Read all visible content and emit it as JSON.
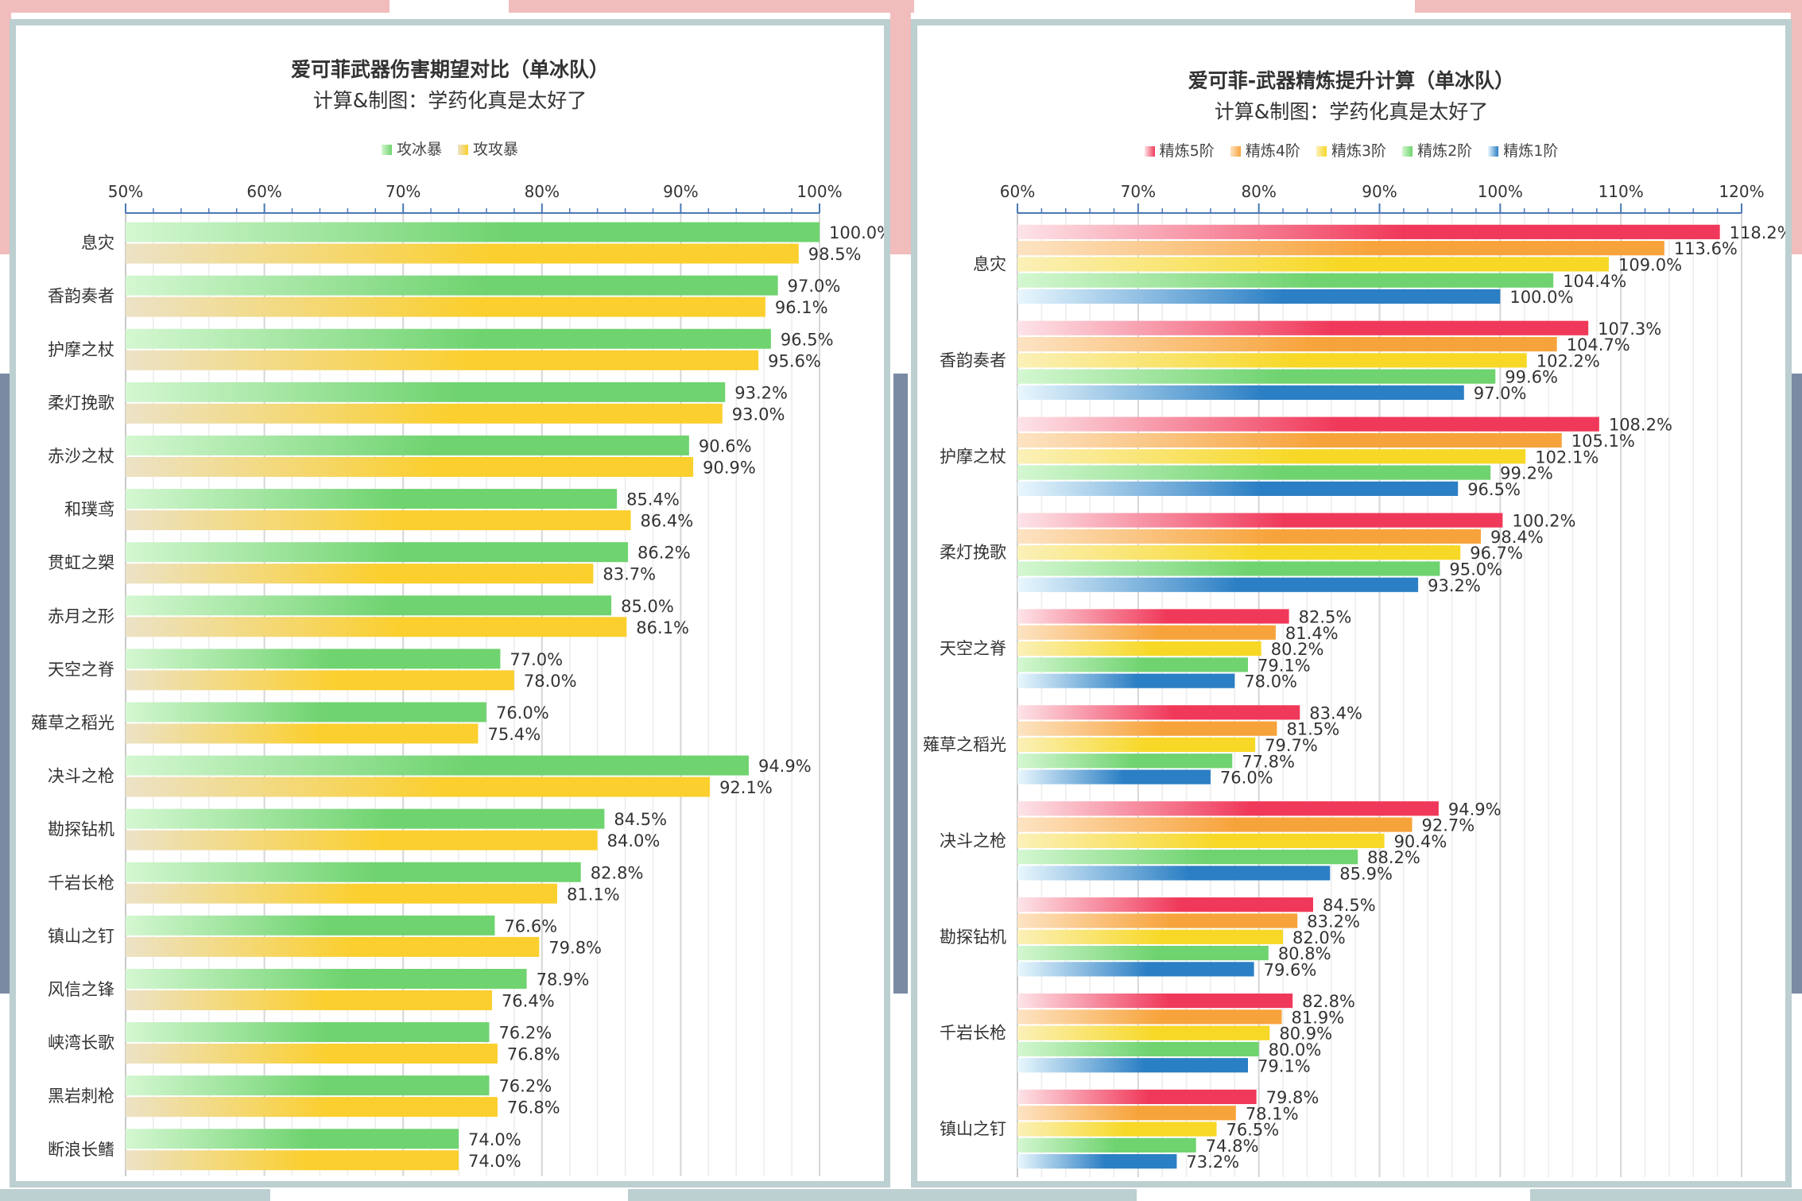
{
  "chart_data": [
    {
      "type": "bar",
      "orientation": "horizontal",
      "title": "爱可菲武器伤害期望对比（单冰队）",
      "subtitle": "计算&制图：学药化真是太好了",
      "legend_position": "top",
      "xlim": [
        50,
        100
      ],
      "x_ticks": [
        "50%",
        "60%",
        "70%",
        "80%",
        "90%",
        "100%"
      ],
      "grid": true,
      "categories": [
        "息灾",
        "香韵奏者",
        "护摩之杖",
        "柔灯挽歌",
        "赤沙之杖",
        "和璞鸢",
        "贯虹之槊",
        "赤月之形",
        "天空之脊",
        "薙草之稻光",
        "决斗之枪",
        "勘探钻机",
        "千岩长枪",
        "镇山之钉",
        "风信之锋",
        "峡湾长歌",
        "黑岩刺枪",
        "断浪长鳍"
      ],
      "series": [
        {
          "name": "攻冰暴",
          "color": "#6fd36f",
          "color_light": "#d4f7d1",
          "values": [
            100.0,
            97.0,
            96.5,
            93.2,
            90.6,
            85.4,
            86.2,
            85.0,
            77.0,
            76.0,
            94.9,
            84.5,
            82.8,
            76.6,
            78.9,
            76.2,
            76.2,
            74.0
          ],
          "labels": [
            "100.0%",
            "97.0%",
            "96.5%",
            "93.2%",
            "90.6%",
            "85.4%",
            "86.2%",
            "85.0%",
            "77.0%",
            "76.0%",
            "94.9%",
            "84.5%",
            "82.8%",
            "76.6%",
            "78.9%",
            "76.2%",
            "76.2%",
            "74.0%"
          ]
        },
        {
          "name": "攻攻暴",
          "color": "#fbcf2d",
          "color_light": "#ece2c6",
          "values": [
            98.5,
            96.1,
            95.6,
            93.0,
            90.9,
            86.4,
            83.7,
            86.1,
            78.0,
            75.4,
            92.1,
            84.0,
            81.1,
            79.8,
            76.4,
            76.8,
            76.8,
            74.0
          ],
          "labels": [
            "98.5%",
            "96.1%",
            "95.6%",
            "93.0%",
            "90.9%",
            "86.4%",
            "83.7%",
            "86.1%",
            "78.0%",
            "75.4%",
            "92.1%",
            "84.0%",
            "81.1%",
            "79.8%",
            "76.4%",
            "76.8%",
            "76.8%",
            "74.0%"
          ]
        }
      ]
    },
    {
      "type": "bar",
      "orientation": "horizontal",
      "title": "爱可菲-武器精炼提升计算（单冰队）",
      "subtitle": "计算&制图：学药化真是太好了",
      "legend_position": "top",
      "xlim": [
        60,
        120
      ],
      "x_ticks": [
        "60%",
        "70%",
        "80%",
        "90%",
        "100%",
        "110%",
        "120%"
      ],
      "grid": true,
      "categories": [
        "息灾",
        "香韵奏者",
        "护摩之杖",
        "柔灯挽歌",
        "天空之脊",
        "薙草之稻光",
        "决斗之枪",
        "勘探钻机",
        "千岩长枪",
        "镇山之钉"
      ],
      "series": [
        {
          "name": "精炼5阶",
          "color": "#f0395a",
          "color_light": "#fde4e8",
          "values": [
            118.2,
            107.3,
            108.2,
            100.2,
            82.5,
            83.4,
            94.9,
            84.5,
            82.8,
            79.8
          ],
          "labels": [
            "118.2%",
            "107.3%",
            "108.2%",
            "100.2%",
            "82.5%",
            "83.4%",
            "94.9%",
            "84.5%",
            "82.8%",
            "79.8%"
          ]
        },
        {
          "name": "精炼4阶",
          "color": "#f7a33b",
          "color_light": "#fde3c3",
          "values": [
            113.6,
            104.7,
            105.1,
            98.4,
            81.4,
            81.5,
            92.7,
            83.2,
            81.9,
            78.1
          ],
          "labels": [
            "113.6%",
            "104.7%",
            "105.1%",
            "98.4%",
            "81.4%",
            "81.5%",
            "92.7%",
            "83.2%",
            "81.9%",
            "78.1%"
          ]
        },
        {
          "name": "精炼3阶",
          "color": "#f7d826",
          "color_light": "#fbf0b8",
          "values": [
            109.0,
            102.2,
            102.1,
            96.7,
            80.2,
            79.7,
            90.4,
            82.0,
            80.9,
            76.5
          ],
          "labels": [
            "109.0%",
            "102.2%",
            "102.1%",
            "96.7%",
            "80.2%",
            "79.7%",
            "90.4%",
            "82.0%",
            "80.9%",
            "76.5%"
          ]
        },
        {
          "name": "精炼2阶",
          "color": "#6fd36f",
          "color_light": "#d4f7d1",
          "values": [
            104.4,
            99.6,
            99.2,
            95.0,
            79.1,
            77.8,
            88.2,
            80.8,
            80.0,
            74.8
          ],
          "labels": [
            "104.4%",
            "99.6%",
            "99.2%",
            "95.0%",
            "79.1%",
            "77.8%",
            "88.2%",
            "80.8%",
            "80.0%",
            "74.8%"
          ]
        },
        {
          "name": "精炼1阶",
          "color": "#2b7fc4",
          "color_light": "#e9f7fd",
          "values": [
            100.0,
            97.0,
            96.5,
            93.2,
            78.0,
            76.0,
            85.9,
            79.6,
            79.1,
            73.2
          ],
          "labels": [
            "100.0%",
            "97.0%",
            "96.5%",
            "93.2%",
            "78.0%",
            "76.0%",
            "85.9%",
            "79.6%",
            "79.1%",
            "73.2%"
          ]
        }
      ]
    }
  ]
}
